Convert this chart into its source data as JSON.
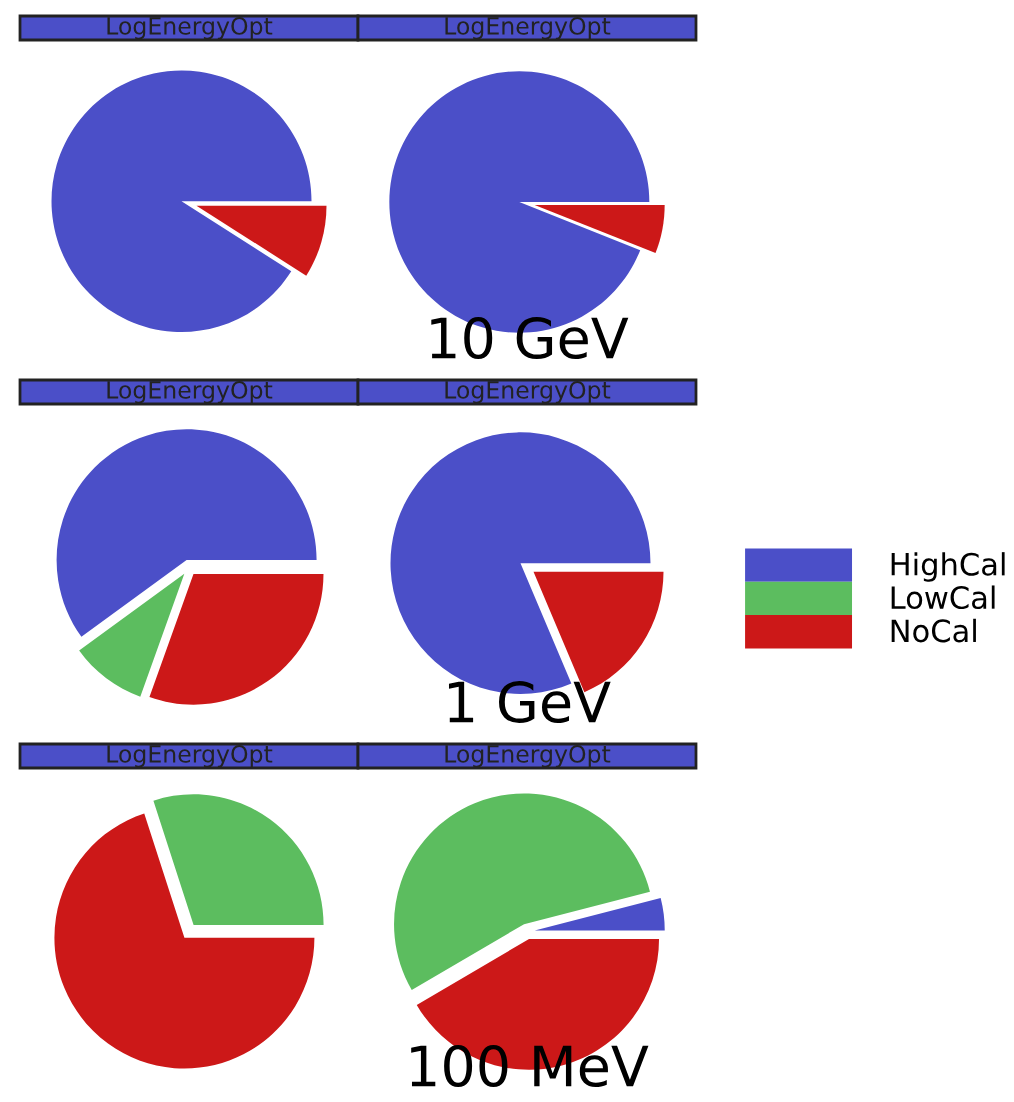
{
  "chart_data": [
    {
      "type": "pie",
      "title": "LogEnergyOpt",
      "categories": [
        null,
        null,
        null
      ],
      "values": [
        91,
        0,
        9
      ],
      "colors": [
        "#4b4fc8",
        "#5cbd5f",
        "#cc1818"
      ]
    },
    {
      "type": "pie",
      "title": "LogEnergyOpt",
      "categories": [
        null,
        null,
        null
      ],
      "values": [
        94,
        0,
        6
      ],
      "colors": [
        "#4b4fc8",
        "#5cbd5f",
        "#cc1818"
      ],
      "annotations": [
        "10 GeV"
      ]
    },
    {
      "type": "pie",
      "title": "LogEnergyOpt",
      "categories": [
        null,
        null,
        null
      ],
      "values": [
        60,
        9.5,
        30.5
      ],
      "colors": [
        "#4b4fc8",
        "#5cbd5f",
        "#cc1818"
      ]
    },
    {
      "type": "pie",
      "title": "LogEnergyOpt",
      "categories": [
        "HighCal",
        "LowCal",
        "NoCal"
      ],
      "values": [
        81.4,
        0,
        18.6
      ],
      "colors": [
        "#4b4fc8",
        "#5cbd5f",
        "#cc1818"
      ],
      "annotations": [
        "1 GeV"
      ],
      "legend": "right"
    },
    {
      "type": "pie",
      "title": "LogEnergyOpt",
      "categories": [
        null,
        null,
        null
      ],
      "values": [
        0,
        30,
        70
      ],
      "colors": [
        "#4b4fc8",
        "#5cbd5f",
        "#cc1818"
      ]
    },
    {
      "type": "pie",
      "title": "LogEnergyOpt",
      "categories": [
        null,
        null,
        null
      ],
      "values": [
        4,
        54.4,
        41.6
      ],
      "colors": [
        "#4b4fc8",
        "#5cbd5f",
        "#cc1818"
      ],
      "annotations": [
        "100 MeV"
      ]
    }
  ]
}
